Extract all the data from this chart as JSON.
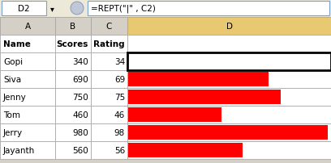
{
  "title_cell": "D2",
  "formula": "=REPT(\"|\" , C2)",
  "col_headers": [
    "A",
    "B",
    "C",
    "D"
  ],
  "names": [
    "Gopi",
    "Siva",
    "Jenny",
    "Tom",
    "Jerry",
    "Jayanth"
  ],
  "scores": [
    340,
    690,
    750,
    460,
    980,
    560
  ],
  "ratings": [
    34,
    69,
    75,
    46,
    98,
    56
  ],
  "bar_color": "#FF0000",
  "header_D_bg": "#E8C870",
  "col_header_bg": "#D4D0C8",
  "grid_color": "#A0A0A0",
  "toolbar_bg": "#D4D0C8",
  "white": "#FFFFFF",
  "selected_cell_border": "#000000",
  "text_color": "#000000",
  "max_rating": 100,
  "fig_w": 4.08,
  "fig_h": 2.03,
  "dpi": 100
}
